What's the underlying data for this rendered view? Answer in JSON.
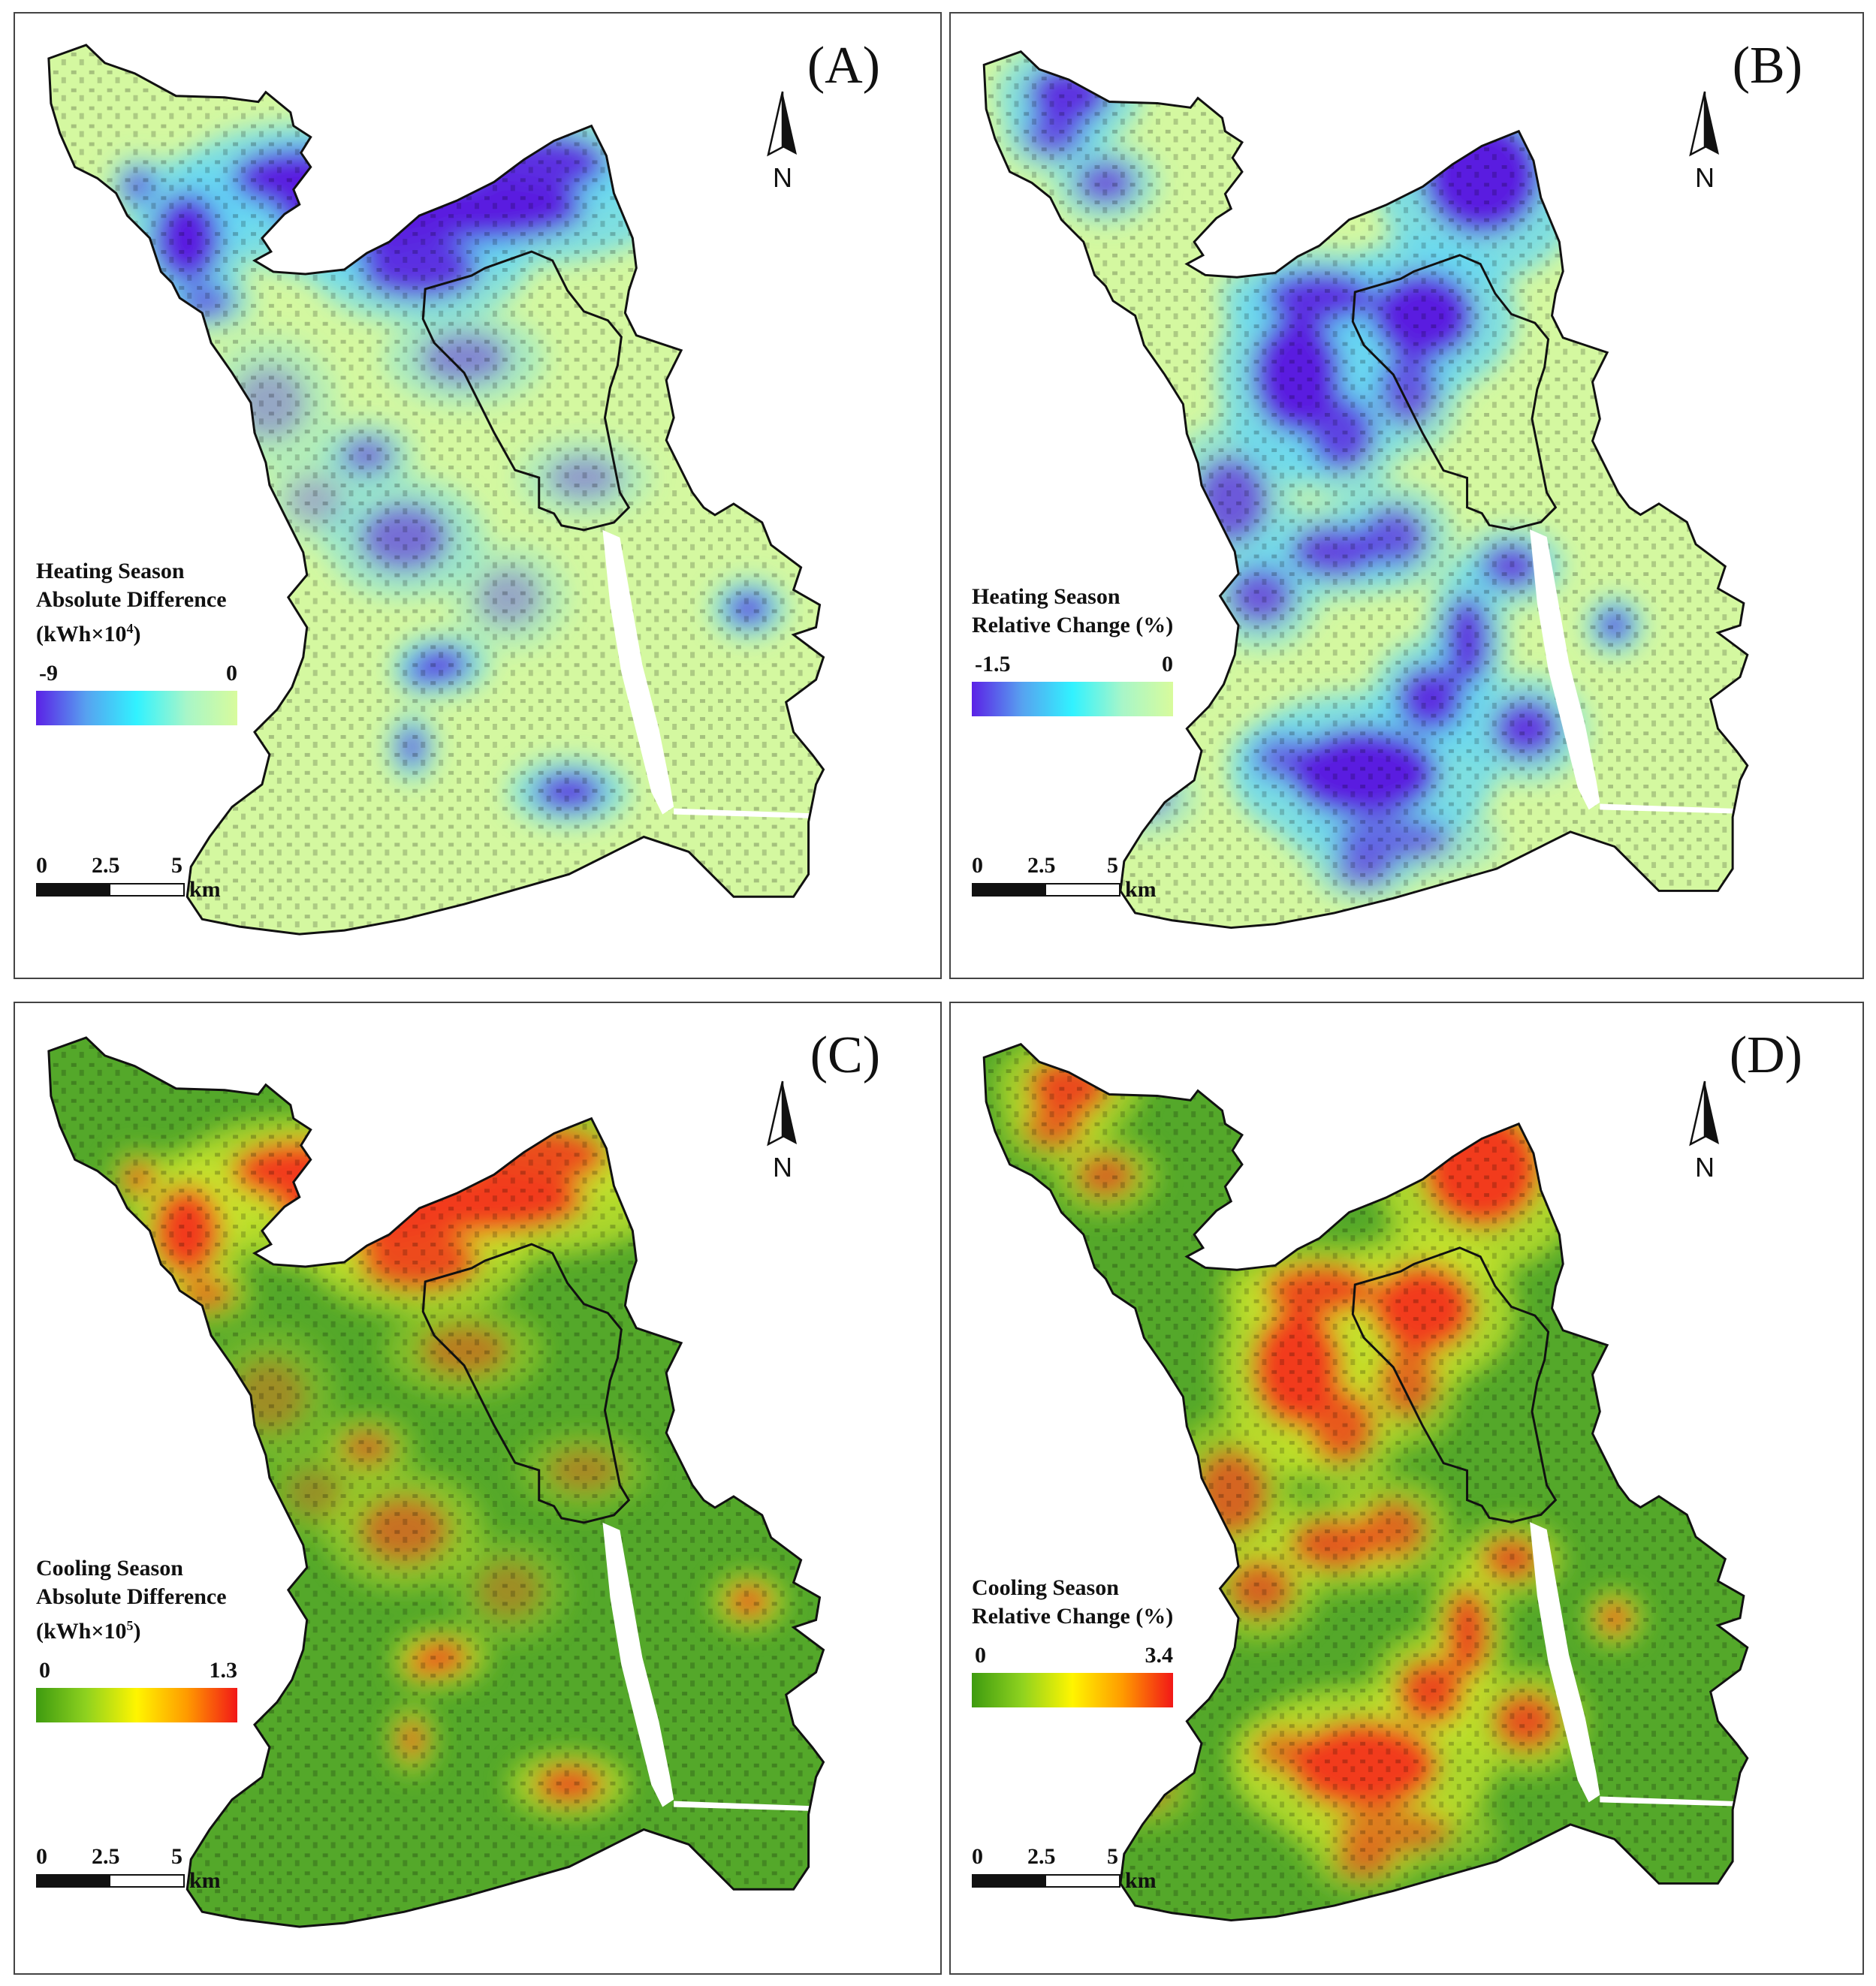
{
  "north_label": "N",
  "scale": {
    "ticks": [
      "0",
      "2.5",
      "5"
    ],
    "unit": "km"
  },
  "panels": [
    {
      "id": "A",
      "label": "(A)",
      "legend_lines": [
        "Heating Season",
        "Absolute Difference"
      ],
      "unit_base": "(kWh×10",
      "unit_exp": "4",
      "unit_close": ")",
      "min": "-9",
      "max": "0",
      "ramp": [
        "#5b21e6",
        "#57a2f0",
        "#31f2ff",
        "#a8f6c8",
        "#d8fb9c"
      ]
    },
    {
      "id": "B",
      "label": "(B)",
      "legend_lines": [
        "Heating Season",
        "Relative Change (%)"
      ],
      "unit_base": "",
      "unit_exp": "",
      "unit_close": "",
      "min": "-1.5",
      "max": "0",
      "ramp": [
        "#5b21e6",
        "#57a2f0",
        "#31f2ff",
        "#a8f6c8",
        "#d8fb9c"
      ]
    },
    {
      "id": "C",
      "label": "(C)",
      "legend_lines": [
        "Cooling Season",
        "Absolute Difference"
      ],
      "unit_base": "(kWh×10",
      "unit_exp": "5",
      "unit_close": ")",
      "min": "0",
      "max": "1.3",
      "ramp": [
        "#3e9b10",
        "#8fd21f",
        "#fff500",
        "#ff9a00",
        "#f21717"
      ]
    },
    {
      "id": "D",
      "label": "(D)",
      "legend_lines": [
        "Cooling Season",
        "Relative Change (%)"
      ],
      "unit_base": "",
      "unit_exp": "",
      "unit_close": "",
      "min": "0",
      "max": "3.4",
      "ramp": [
        "#3e9b10",
        "#8fd21f",
        "#fff500",
        "#ff9a00",
        "#f21717"
      ]
    }
  ]
}
